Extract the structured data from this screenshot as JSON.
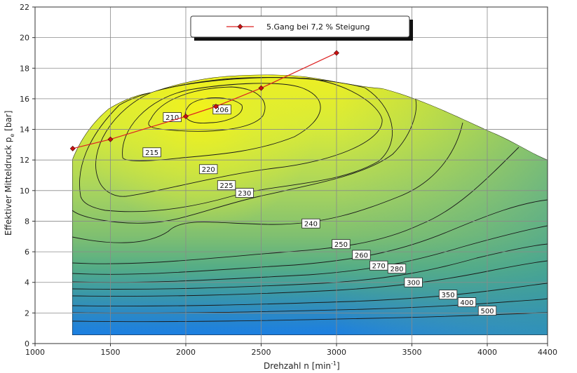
{
  "chart_data": {
    "type": "line",
    "xlabel": "Drehzahl n [min-1]",
    "xlabel_main": "Drehzahl n [min",
    "xlabel_sup": "-1",
    "xlabel_end": "]",
    "ylabel": "Effektiver Mitteldruck pe [bar]",
    "ylabel_main": "Effektiver Mitteldruck p",
    "ylabel_sub": "e",
    "ylabel_end": " [bar]",
    "xlim": [
      1000,
      4400
    ],
    "ylim": [
      0,
      22
    ],
    "xticks": [
      1000,
      1500,
      2000,
      2500,
      3000,
      3500,
      4000,
      4400
    ],
    "yticks": [
      0,
      2,
      4,
      6,
      8,
      10,
      12,
      14,
      16,
      18,
      20,
      22
    ],
    "grid": true,
    "legend_position": "top-center",
    "series": [
      {
        "name": "5.Gang bei 7,2 % Steigung",
        "color": "#dd2222",
        "x": [
          1250,
          1500,
          2000,
          2200,
          2500,
          3000
        ],
        "y": [
          12.75,
          13.35,
          14.85,
          15.5,
          16.7,
          19.0
        ]
      }
    ],
    "contour_labels": [
      {
        "text": "206",
        "x": 2240,
        "y": 15.3
      },
      {
        "text": "210",
        "x": 1910,
        "y": 14.8
      },
      {
        "text": "215",
        "x": 1775,
        "y": 12.5
      },
      {
        "text": "220",
        "x": 2150,
        "y": 11.4
      },
      {
        "text": "225",
        "x": 2270,
        "y": 10.35
      },
      {
        "text": "230",
        "x": 2390,
        "y": 9.85
      },
      {
        "text": "240",
        "x": 2830,
        "y": 7.85
      },
      {
        "text": "250",
        "x": 3030,
        "y": 6.5
      },
      {
        "text": "260",
        "x": 3165,
        "y": 5.8
      },
      {
        "text": "270",
        "x": 3280,
        "y": 5.1
      },
      {
        "text": "280",
        "x": 3400,
        "y": 4.9
      },
      {
        "text": "300",
        "x": 3510,
        "y": 4.0
      },
      {
        "text": "350",
        "x": 3740,
        "y": 3.2
      },
      {
        "text": "400",
        "x": 3865,
        "y": 2.7
      },
      {
        "text": "500",
        "x": 4000,
        "y": 2.15
      }
    ],
    "colors": {
      "low_region": "#1a7fe0",
      "mid_region": "#5db58a",
      "high_region": "#e8f020",
      "contour_line": "#1a1a1a",
      "grid": "#8a8a8a"
    }
  }
}
